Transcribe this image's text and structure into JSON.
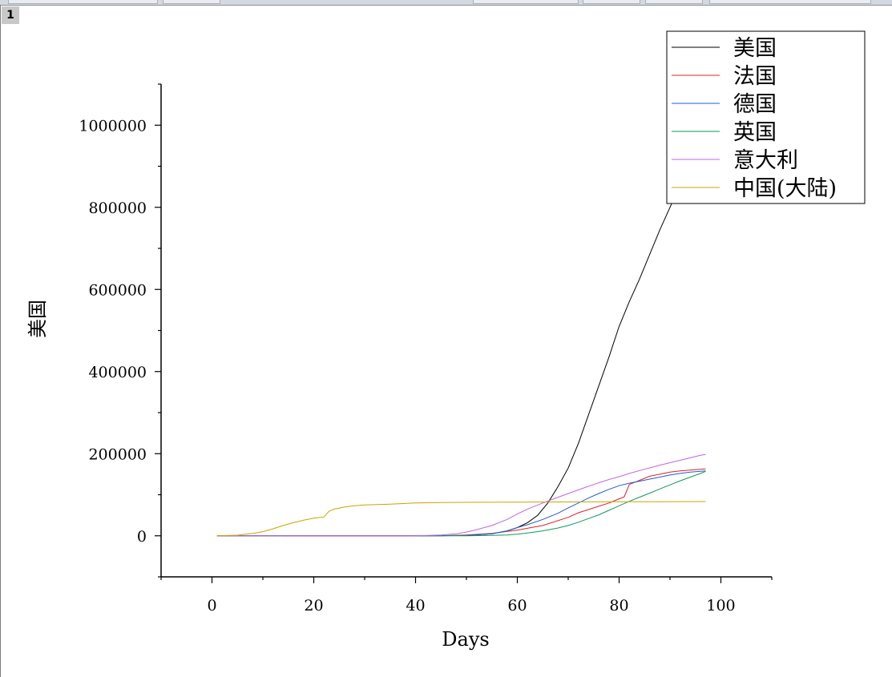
{
  "page": {
    "badge": "1"
  },
  "chart_data": {
    "type": "line",
    "title": "",
    "xlabel": "Days",
    "ylabel": "美国",
    "xlim": [
      -10,
      110
    ],
    "ylim": [
      -100000,
      1100000
    ],
    "xticks": [
      0,
      20,
      40,
      60,
      80,
      100
    ],
    "xtick_labels": [
      "0",
      "20",
      "40",
      "60",
      "80",
      "100"
    ],
    "yticks": [
      0,
      200000,
      400000,
      600000,
      800000,
      1000000
    ],
    "ytick_labels": [
      "0",
      "200000",
      "400000",
      "600000",
      "800000",
      "1000000"
    ],
    "grid": false,
    "legend_position": "top-right",
    "series": [
      {
        "name": "美国",
        "color": "#000000",
        "x": [
          1,
          40,
          50,
          55,
          58,
          60,
          62,
          64,
          66,
          68,
          70,
          72,
          74,
          76,
          78,
          80,
          82,
          84,
          86,
          88,
          90,
          92,
          94,
          96,
          97
        ],
        "y": [
          0,
          0,
          1000,
          5000,
          12000,
          20000,
          32000,
          50000,
          80000,
          120000,
          165000,
          225000,
          295000,
          365000,
          435000,
          510000,
          570000,
          625000,
          685000,
          745000,
          800000,
          855000,
          905000,
          950000,
          970000
        ]
      },
      {
        "name": "法国",
        "color": "#e02020",
        "x": [
          1,
          45,
          50,
          55,
          60,
          65,
          70,
          72,
          75,
          78,
          80,
          81,
          82,
          84,
          86,
          88,
          90,
          92,
          94,
          96,
          97
        ],
        "y": [
          0,
          0,
          2000,
          6000,
          14000,
          25000,
          45000,
          56000,
          68000,
          80000,
          90000,
          95000,
          125000,
          135000,
          145000,
          150000,
          155000,
          158000,
          160000,
          162000,
          163000
        ]
      },
      {
        "name": "德国",
        "color": "#1f5bd6",
        "x": [
          1,
          10,
          45,
          50,
          55,
          58,
          60,
          62,
          65,
          68,
          70,
          72,
          74,
          76,
          78,
          80,
          82,
          84,
          86,
          88,
          90,
          92,
          94,
          96,
          97
        ],
        "y": [
          0,
          0,
          0,
          1000,
          5000,
          12000,
          20000,
          27000,
          40000,
          55000,
          68000,
          80000,
          92000,
          103000,
          113000,
          122000,
          128000,
          133000,
          138000,
          143000,
          148000,
          152000,
          155000,
          157000,
          158000
        ]
      },
      {
        "name": "英国",
        "color": "#0e9a5a",
        "x": [
          1,
          50,
          55,
          58,
          60,
          62,
          65,
          68,
          70,
          72,
          74,
          76,
          78,
          80,
          82,
          84,
          86,
          88,
          90,
          92,
          94,
          96,
          97
        ],
        "y": [
          0,
          0,
          1000,
          2000,
          4000,
          7000,
          12000,
          19000,
          25000,
          33000,
          42000,
          51000,
          62000,
          73000,
          84000,
          94000,
          104000,
          114000,
          124000,
          134000,
          143000,
          152000,
          157000
        ]
      },
      {
        "name": "意大利",
        "color": "#c264e0",
        "x": [
          1,
          40,
          45,
          48,
          50,
          52,
          55,
          58,
          60,
          62,
          65,
          68,
          70,
          72,
          75,
          78,
          80,
          82,
          85,
          88,
          90,
          92,
          94,
          96,
          97
        ],
        "y": [
          0,
          0,
          2000,
          5000,
          9000,
          15000,
          25000,
          40000,
          53000,
          65000,
          80000,
          94000,
          103000,
          112000,
          125000,
          137000,
          144000,
          152000,
          162000,
          172000,
          178000,
          184000,
          190000,
          196000,
          198000
        ]
      },
      {
        "name": "中国(大陆)",
        "color": "#c9a400",
        "x": [
          1,
          5,
          8,
          10,
          12,
          14,
          16,
          18,
          20,
          22,
          23,
          24,
          26,
          28,
          30,
          35,
          40,
          45,
          50,
          60,
          70,
          80,
          90,
          97
        ],
        "y": [
          0,
          1500,
          6000,
          10000,
          17000,
          25000,
          32000,
          38000,
          43000,
          46000,
          60000,
          65000,
          70000,
          73000,
          75000,
          77000,
          80000,
          81000,
          81500,
          82000,
          82500,
          83000,
          83200,
          83400
        ]
      }
    ]
  }
}
